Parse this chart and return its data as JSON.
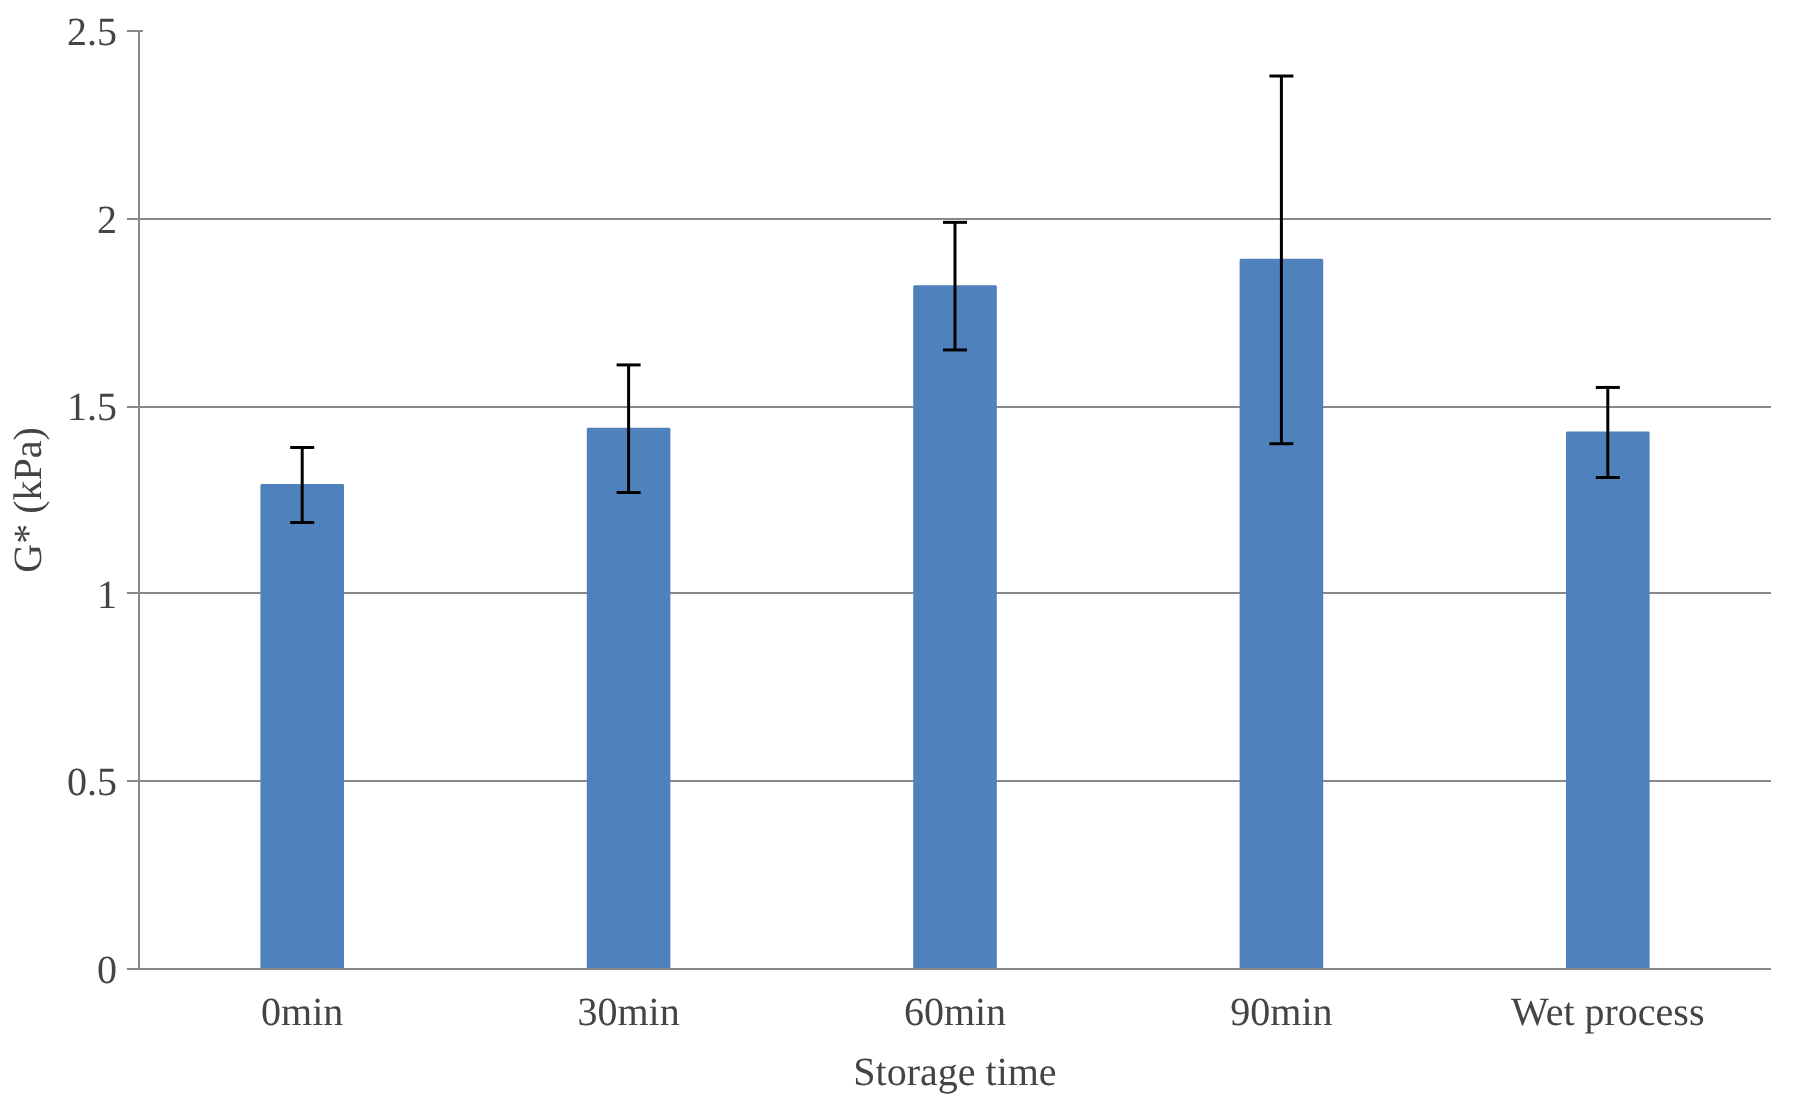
{
  "chart_data": {
    "type": "bar",
    "xlabel": "Storage time",
    "ylabel": "G* (kPa)",
    "categories": [
      "0min",
      "30min",
      "60min",
      "90min",
      "Wet process"
    ],
    "values": [
      1.29,
      1.44,
      1.82,
      1.89,
      1.43
    ],
    "errors": [
      0.1,
      0.17,
      0.17,
      0.49,
      0.12
    ],
    "color": "#4f81bd",
    "ylim": [
      0,
      2.5
    ],
    "yticks": [
      0,
      0.5,
      1,
      1.5,
      2,
      2.5
    ],
    "grid": "y"
  }
}
